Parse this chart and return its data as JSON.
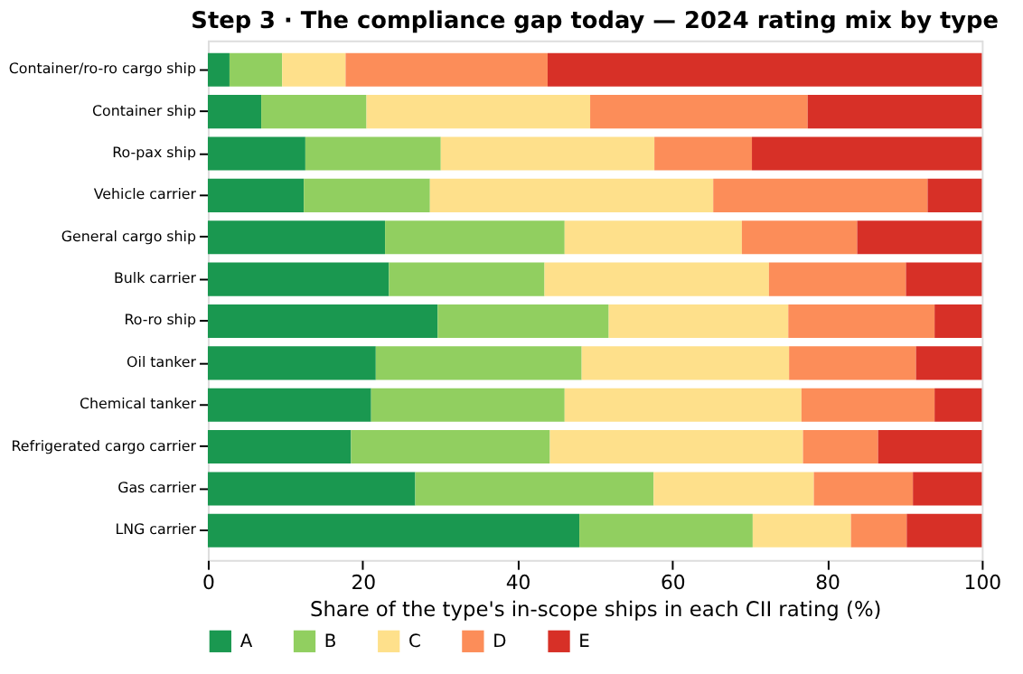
{
  "chart_data": {
    "type": "bar",
    "orientation": "horizontal",
    "stacked": true,
    "title": "Step 3 · The compliance gap today — 2024 rating mix by type",
    "xlabel": "Share of the type's in-scope ships in each CII rating  (%)",
    "categories": [
      "Container/ro-ro cargo ship",
      "Container ship",
      "Ro-pax ship",
      "Vehicle carrier",
      "General cargo ship",
      "Bulk carrier",
      "Ro-ro ship",
      "Oil tanker",
      "Chemical tanker",
      "Refrigerated cargo carrier",
      "Gas carrier",
      "LNG carrier"
    ],
    "series": [
      {
        "name": "A",
        "color": "#1a9850",
        "values": [
          2.8,
          6.9,
          12.6,
          12.4,
          22.9,
          23.4,
          29.7,
          21.7,
          21.1,
          18.5,
          26.8,
          48.0
        ]
      },
      {
        "name": "B",
        "color": "#91cf60",
        "values": [
          6.8,
          13.6,
          17.5,
          16.3,
          23.2,
          20.1,
          22.1,
          26.6,
          25.0,
          25.7,
          30.8,
          22.4
        ]
      },
      {
        "name": "C",
        "color": "#fee08b",
        "values": [
          8.2,
          28.9,
          27.6,
          36.6,
          22.9,
          29.0,
          23.2,
          26.8,
          30.6,
          32.7,
          20.7,
          12.7
        ]
      },
      {
        "name": "D",
        "color": "#fc8d59",
        "values": [
          26.1,
          28.1,
          12.6,
          27.7,
          14.9,
          17.7,
          18.9,
          16.4,
          17.2,
          9.7,
          12.8,
          7.2
        ]
      },
      {
        "name": "E",
        "color": "#d73027",
        "values": [
          56.1,
          22.5,
          29.7,
          7.0,
          16.1,
          9.8,
          6.1,
          8.5,
          6.1,
          13.4,
          8.9,
          9.7
        ]
      }
    ],
    "xlim": [
      0,
      100
    ],
    "xticks": [
      0,
      20,
      40,
      60,
      80,
      100
    ],
    "grid": false,
    "legend": "bottom"
  }
}
